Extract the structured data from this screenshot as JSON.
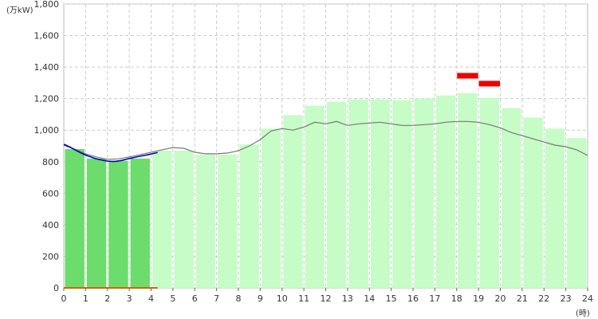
{
  "chart_data": {
    "type": "bar",
    "ylabel": "(万kW)",
    "xlabel": "(時)",
    "ylim": [
      0,
      1800
    ],
    "xlim": [
      0,
      24
    ],
    "y_ticks": [
      "0",
      "200",
      "400",
      "600",
      "800",
      "1,000",
      "1,200",
      "1,400",
      "1,600",
      "1,800"
    ],
    "y_tick_values": [
      0,
      200,
      400,
      600,
      800,
      1000,
      1200,
      1400,
      1600,
      1800
    ],
    "x_ticks": [
      "0",
      "1",
      "2",
      "3",
      "4",
      "5",
      "6",
      "7",
      "8",
      "9",
      "10",
      "11",
      "12",
      "13",
      "14",
      "15",
      "16",
      "17",
      "18",
      "19",
      "20",
      "21",
      "22",
      "23",
      "24"
    ],
    "grid": true,
    "hours": [
      0,
      1,
      2,
      3,
      4,
      5,
      6,
      7,
      8,
      9,
      10,
      11,
      12,
      13,
      14,
      15,
      16,
      17,
      18,
      19,
      20,
      21,
      22,
      23
    ],
    "hourly_actual_bars": [
      880,
      820,
      805,
      820
    ],
    "hourly_forecast_bars": [
      880,
      820,
      805,
      820,
      870,
      870,
      845,
      845,
      910,
      1010,
      1095,
      1155,
      1180,
      1195,
      1195,
      1190,
      1200,
      1220,
      1235,
      1205,
      1140,
      1080,
      1010,
      950
    ],
    "peak_markers": [
      {
        "hour": 18,
        "value": 1345
      },
      {
        "hour": 19,
        "value": 1295
      }
    ],
    "actual_line_5min": [
      [
        0.0,
        910
      ],
      [
        0.1,
        905
      ],
      [
        0.2,
        898
      ],
      [
        0.3,
        892
      ],
      [
        0.4,
        884
      ],
      [
        0.5,
        876
      ],
      [
        0.6,
        869
      ],
      [
        0.7,
        862
      ],
      [
        0.8,
        855
      ],
      [
        0.9,
        849
      ],
      [
        1.0,
        842
      ],
      [
        1.1,
        837
      ],
      [
        1.2,
        832
      ],
      [
        1.3,
        827
      ],
      [
        1.4,
        822
      ],
      [
        1.5,
        818
      ],
      [
        1.6,
        815
      ],
      [
        1.7,
        812
      ],
      [
        1.8,
        809
      ],
      [
        1.9,
        806
      ],
      [
        2.0,
        804
      ],
      [
        2.1,
        803
      ],
      [
        2.2,
        802
      ],
      [
        2.3,
        802
      ],
      [
        2.4,
        803
      ],
      [
        2.5,
        805
      ],
      [
        2.6,
        807
      ],
      [
        2.7,
        810
      ],
      [
        2.8,
        813
      ],
      [
        2.9,
        817
      ],
      [
        3.0,
        820
      ],
      [
        3.1,
        823
      ],
      [
        3.2,
        826
      ],
      [
        3.3,
        829
      ],
      [
        3.4,
        832
      ],
      [
        3.5,
        835
      ],
      [
        3.6,
        838
      ],
      [
        3.7,
        840
      ],
      [
        3.8,
        843
      ],
      [
        3.9,
        846
      ],
      [
        4.0,
        849
      ],
      [
        4.1,
        852
      ],
      [
        4.2,
        855
      ],
      [
        4.3,
        858
      ]
    ],
    "forecast_line": [
      [
        0.0,
        905
      ],
      [
        0.5,
        880
      ],
      [
        1.0,
        850
      ],
      [
        1.5,
        830
      ],
      [
        2.0,
        815
      ],
      [
        2.5,
        818
      ],
      [
        3.0,
        830
      ],
      [
        3.5,
        845
      ],
      [
        4.0,
        860
      ],
      [
        4.5,
        875
      ],
      [
        5.0,
        890
      ],
      [
        5.5,
        885
      ],
      [
        6.0,
        860
      ],
      [
        6.5,
        850
      ],
      [
        7.0,
        850
      ],
      [
        7.5,
        855
      ],
      [
        8.0,
        870
      ],
      [
        8.5,
        900
      ],
      [
        9.0,
        940
      ],
      [
        9.5,
        995
      ],
      [
        10.0,
        1010
      ],
      [
        10.5,
        1000
      ],
      [
        11.0,
        1020
      ],
      [
        11.5,
        1050
      ],
      [
        12.0,
        1040
      ],
      [
        12.5,
        1055
      ],
      [
        13.0,
        1030
      ],
      [
        13.5,
        1040
      ],
      [
        14.0,
        1045
      ],
      [
        14.5,
        1050
      ],
      [
        15.0,
        1040
      ],
      [
        15.5,
        1030
      ],
      [
        16.0,
        1030
      ],
      [
        16.5,
        1035
      ],
      [
        17.0,
        1040
      ],
      [
        17.5,
        1050
      ],
      [
        18.0,
        1055
      ],
      [
        18.5,
        1055
      ],
      [
        19.0,
        1050
      ],
      [
        19.5,
        1035
      ],
      [
        20.0,
        1015
      ],
      [
        20.5,
        985
      ],
      [
        21.0,
        965
      ],
      [
        21.5,
        945
      ],
      [
        22.0,
        925
      ],
      [
        22.5,
        905
      ],
      [
        23.0,
        895
      ],
      [
        23.5,
        875
      ],
      [
        24.0,
        840
      ]
    ],
    "colors": {
      "actual_bar": "#6cdc6c",
      "forecast_bar": "#c6fcc6",
      "actual_line": "#0000bb",
      "forecast_line": "#777777",
      "peak_marker": "#ee0000",
      "baseline": "#cc6600",
      "grid": "#cccccc"
    }
  }
}
